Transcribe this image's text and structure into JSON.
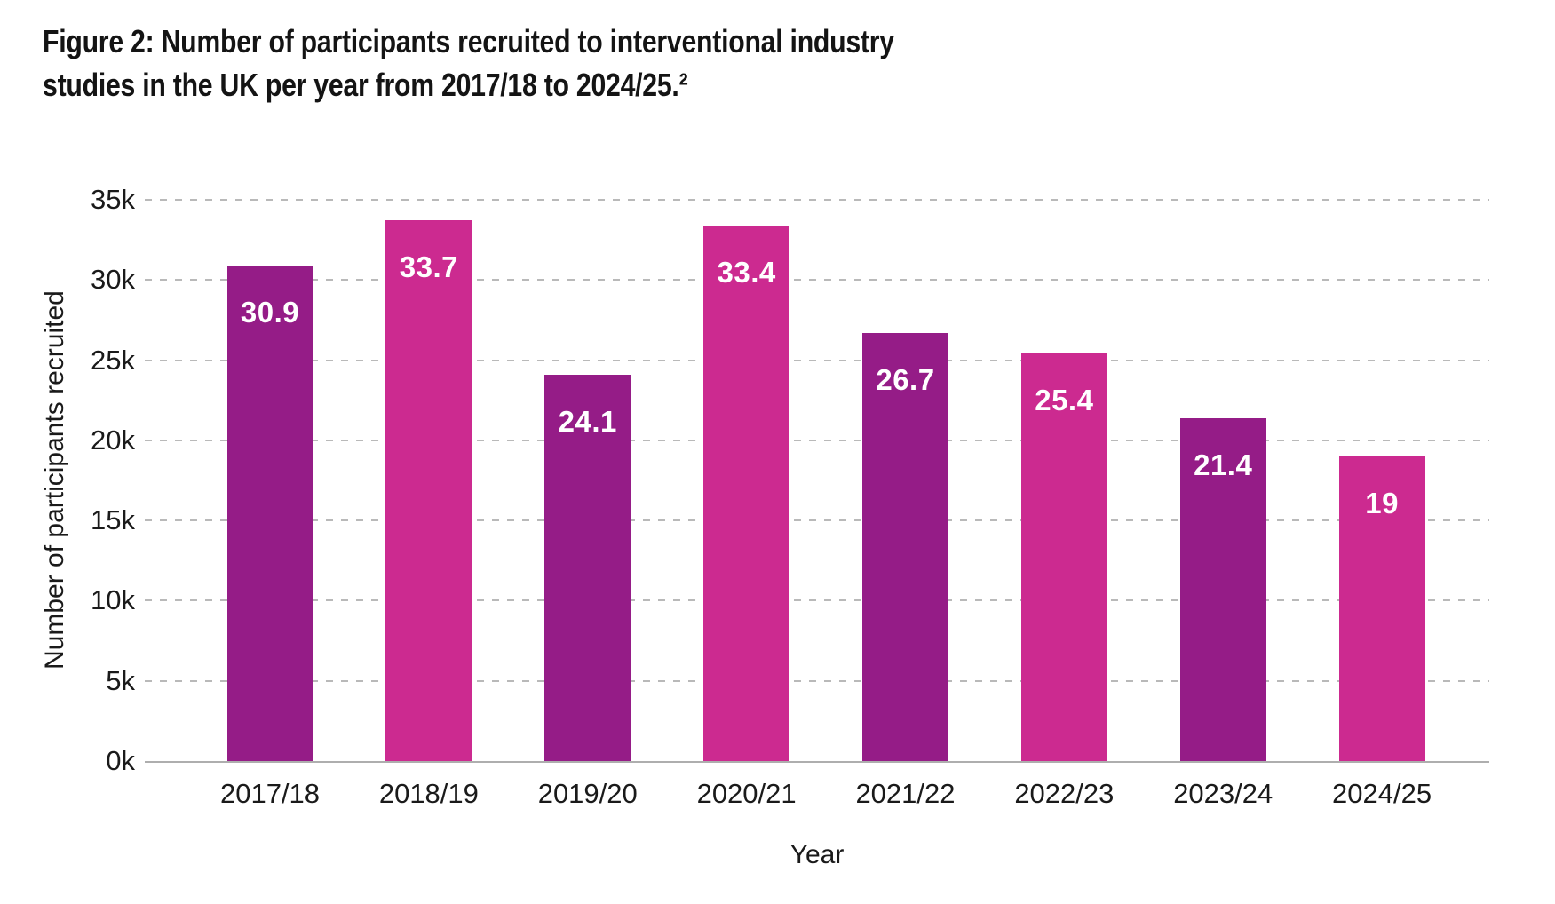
{
  "page": {
    "title_lines": [
      "Figure 2: Number of participants recruited to interventional industry",
      "studies in the UK per year from 2017/18 to 2024/25.²"
    ]
  },
  "chart_data": {
    "type": "bar",
    "title": "Figure 2: Number of participants recruited to interventional industry studies in the UK per year from 2017/18 to 2024/25.²",
    "xlabel": "Year",
    "ylabel": "Number of participants recruited",
    "categories": [
      "2017/18",
      "2018/19",
      "2019/20",
      "2020/21",
      "2021/22",
      "2022/23",
      "2023/24",
      "2024/25"
    ],
    "values_thousands": [
      30.9,
      33.7,
      24.1,
      33.4,
      26.7,
      25.4,
      21.4,
      19
    ],
    "bar_value_labels": [
      "30.9",
      "33.7",
      "24.1",
      "33.4",
      "26.7",
      "25.4",
      "21.4",
      "19"
    ],
    "yticks": [
      "0k",
      "5k",
      "10k",
      "15k",
      "20k",
      "25k",
      "30k",
      "35k"
    ],
    "ytick_step_thousands": 5,
    "ylim_thousands": [
      0,
      35
    ],
    "grid": "horizontal-dashed",
    "legend_position": "none",
    "colors": {
      "bar_alternate": [
        "#951C87",
        "#CC2A90"
      ],
      "value_label": "#FFFFFF",
      "gridline": "#B9B9B9",
      "axis_line": "#AEAEAE",
      "text": "#1A1A1A"
    }
  }
}
